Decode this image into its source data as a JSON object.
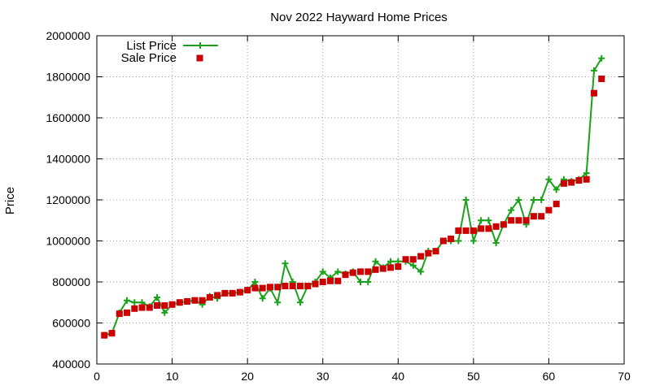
{
  "chart_data": {
    "type": "line",
    "title": "Nov 2022 Hayward Home Prices",
    "xlabel": "",
    "ylabel": "Price",
    "xlim": [
      0,
      70
    ],
    "ylim": [
      400000,
      2000000
    ],
    "xticks": [
      0,
      10,
      20,
      30,
      40,
      50,
      60,
      70
    ],
    "yticks": [
      400000,
      600000,
      800000,
      1000000,
      1200000,
      1400000,
      1600000,
      1800000,
      2000000
    ],
    "grid": true,
    "legend_position": "top-left",
    "x": [
      1,
      2,
      3,
      4,
      5,
      6,
      7,
      8,
      9,
      10,
      11,
      12,
      13,
      14,
      15,
      16,
      17,
      18,
      19,
      20,
      21,
      22,
      23,
      24,
      25,
      26,
      27,
      28,
      29,
      30,
      31,
      32,
      33,
      34,
      35,
      36,
      37,
      38,
      39,
      40,
      41,
      42,
      43,
      44,
      45,
      46,
      47,
      48,
      49,
      50,
      51,
      52,
      53,
      54,
      55,
      56,
      57,
      58,
      59,
      60,
      61,
      62,
      63,
      64,
      65,
      66,
      67
    ],
    "series": [
      {
        "name": "List Price",
        "style": "line-plus",
        "color": "#1aa31a",
        "values": [
          540000,
          550000,
          650000,
          710000,
          700000,
          700000,
          680000,
          725000,
          650000,
          690000,
          700000,
          705000,
          710000,
          690000,
          730000,
          720000,
          745000,
          745000,
          750000,
          760000,
          800000,
          720000,
          770000,
          700000,
          890000,
          800000,
          700000,
          780000,
          800000,
          850000,
          820000,
          850000,
          840000,
          850000,
          800000,
          800000,
          900000,
          870000,
          900000,
          900000,
          900000,
          880000,
          850000,
          950000,
          950000,
          1000000,
          1000000,
          1000000,
          1200000,
          1000000,
          1100000,
          1100000,
          990000,
          1080000,
          1150000,
          1200000,
          1080000,
          1200000,
          1200000,
          1300000,
          1250000,
          1300000,
          1290000,
          1300000,
          1330000,
          1830000,
          1890000
        ]
      },
      {
        "name": "Sale Price",
        "style": "square",
        "color": "#cc0000",
        "values": [
          540000,
          550000,
          645000,
          650000,
          670000,
          675000,
          675000,
          685000,
          685000,
          690000,
          700000,
          705000,
          710000,
          710000,
          725000,
          735000,
          745000,
          745000,
          750000,
          760000,
          770000,
          770000,
          775000,
          775000,
          780000,
          780000,
          780000,
          780000,
          790000,
          800000,
          805000,
          805000,
          835000,
          845000,
          850000,
          850000,
          860000,
          865000,
          870000,
          875000,
          910000,
          910000,
          925000,
          940000,
          950000,
          1000000,
          1010000,
          1050000,
          1050000,
          1050000,
          1060000,
          1060000,
          1070000,
          1080000,
          1100000,
          1100000,
          1100000,
          1120000,
          1120000,
          1150000,
          1180000,
          1280000,
          1285000,
          1295000,
          1300000,
          1720000,
          1790000
        ]
      }
    ]
  }
}
